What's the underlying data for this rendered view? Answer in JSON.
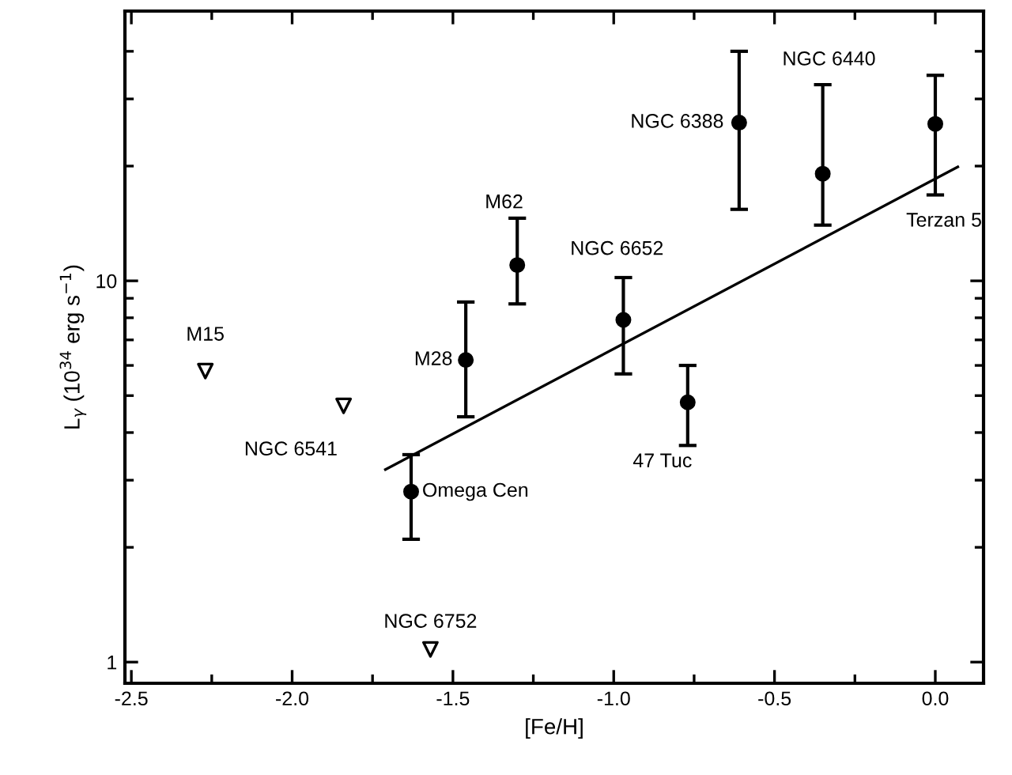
{
  "chart_data": {
    "type": "scatter",
    "xlabel": "[Fe/H]",
    "ylabel": "L$_{γ}$ (10$^{34}$ erg s$^{−1}$)",
    "log": "y",
    "xlim": [
      -2.52,
      0.15
    ],
    "ylim": [
      0.88,
      51
    ],
    "xticks": [
      {
        "value": -2.5,
        "label": "-2.5"
      },
      {
        "value": -2.25,
        "label": null
      },
      {
        "value": -2.0,
        "label": "-2.0"
      },
      {
        "value": -1.75,
        "label": null
      },
      {
        "value": -1.5,
        "label": "-1.5"
      },
      {
        "value": -1.25,
        "label": null
      },
      {
        "value": -1.0,
        "label": "-1.0"
      },
      {
        "value": -0.75,
        "label": null
      },
      {
        "value": -0.5,
        "label": "-0.5"
      },
      {
        "value": -0.25,
        "label": null
      },
      {
        "value": 0.0,
        "label": "0.0"
      }
    ],
    "yticks": [
      1,
      {
        "value": 2,
        "label": null
      },
      {
        "value": 3,
        "label": null
      },
      {
        "value": 4,
        "label": null
      },
      {
        "value": 5,
        "label": null
      },
      {
        "value": 6,
        "label": null
      },
      {
        "value": 7,
        "label": null
      },
      {
        "value": 8,
        "label": null
      },
      {
        "value": 9,
        "label": null
      },
      10,
      {
        "value": 20,
        "label": null
      },
      {
        "value": 30,
        "label": null
      },
      {
        "value": 40,
        "label": null
      }
    ],
    "grid": false,
    "legend": false,
    "series": [
      {
        "marker": "circle",
        "color": "#000000",
        "x": [
          -1.46,
          -1.63,
          -1.3,
          -0.97,
          -0.77,
          -0.61,
          -0.35,
          0.0
        ],
        "values": [
          6.2,
          2.8,
          11.0,
          7.9,
          4.8,
          26,
          19.1,
          25.8
        ],
        "errors": [
          [
            4.4,
            8.8
          ],
          [
            2.1,
            3.5
          ],
          [
            8.7,
            14.6
          ],
          [
            5.7,
            10.2
          ],
          [
            3.7,
            6.0
          ],
          [
            15.4,
            40
          ],
          [
            14.0,
            32.7
          ],
          [
            16.8,
            34.6
          ]
        ]
      },
      {
        "marker": "triangle",
        "color": "#000000",
        "x": [
          -2.27,
          -1.84,
          -1.57
        ],
        "values": [
          5.8,
          4.7,
          1.08
        ]
      },
      {
        "type": "line",
        "marker": "none",
        "line_style": "solid",
        "color": "#000000",
        "x": [
          -1.71,
          0.07
        ],
        "values": [
          3.2,
          19.9
        ]
      }
    ],
    "annotations": [
      {
        "text": "M15",
        "x": -2.27,
        "y": 5.8
      },
      {
        "text": "NGC 6541",
        "x": -1.84,
        "y": 4.7
      },
      {
        "text": "NGC 6752",
        "x": -1.57,
        "y": 1.08
      },
      {
        "text": "M28",
        "x": -1.46,
        "y": 6.2
      },
      {
        "text": "Omega Cen",
        "x": -1.63,
        "y": 2.8
      },
      {
        "text": "M62",
        "x": -1.3,
        "y": 11.0
      },
      "NGC 6652",
      "47 Tuc",
      {
        "text": "NGC 6388",
        "x": -0.61,
        "y": 26
      },
      "NGC 6440",
      "Terzan 5"
    ]
  }
}
